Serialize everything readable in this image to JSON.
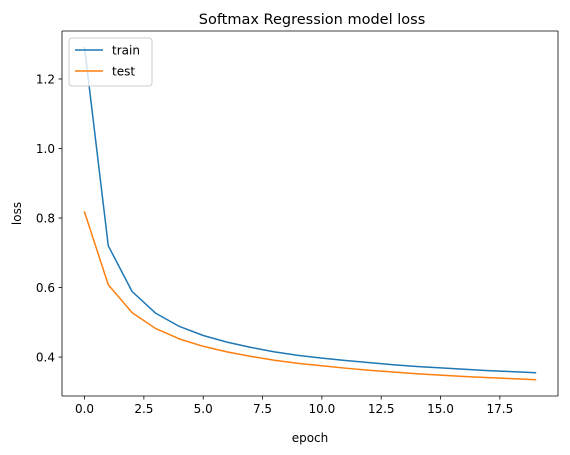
{
  "chart_data": {
    "type": "line",
    "title": "Softmax Regression model loss",
    "xlabel": "epoch",
    "ylabel": "loss",
    "xlim": [
      -0.95,
      19.95
    ],
    "ylim": [
      0.288,
      1.338
    ],
    "xticks": [
      0.0,
      2.5,
      5.0,
      7.5,
      10.0,
      12.5,
      15.0,
      17.5
    ],
    "xtick_labels": [
      "0.0",
      "2.5",
      "5.0",
      "7.5",
      "10.0",
      "12.5",
      "15.0",
      "17.5"
    ],
    "yticks": [
      0.4,
      0.6,
      0.8,
      1.0,
      1.2
    ],
    "ytick_labels": [
      "0.4",
      "0.6",
      "0.8",
      "1.0",
      "1.2"
    ],
    "grid": false,
    "legend_position": "top-left",
    "x": [
      0,
      1,
      2,
      3,
      4,
      5,
      6,
      7,
      8,
      9,
      10,
      11,
      12,
      13,
      14,
      15,
      16,
      17,
      18,
      19
    ],
    "series": [
      {
        "name": "train",
        "color": "#1f77b4",
        "values": [
          1.29,
          0.72,
          0.589,
          0.526,
          0.488,
          0.462,
          0.443,
          0.428,
          0.415,
          0.405,
          0.397,
          0.39,
          0.384,
          0.378,
          0.373,
          0.369,
          0.365,
          0.361,
          0.358,
          0.355
        ]
      },
      {
        "name": "test",
        "color": "#ff7f0e",
        "values": [
          0.817,
          0.608,
          0.528,
          0.482,
          0.452,
          0.431,
          0.415,
          0.402,
          0.391,
          0.382,
          0.375,
          0.368,
          0.362,
          0.357,
          0.352,
          0.348,
          0.344,
          0.341,
          0.338,
          0.335
        ]
      }
    ]
  }
}
